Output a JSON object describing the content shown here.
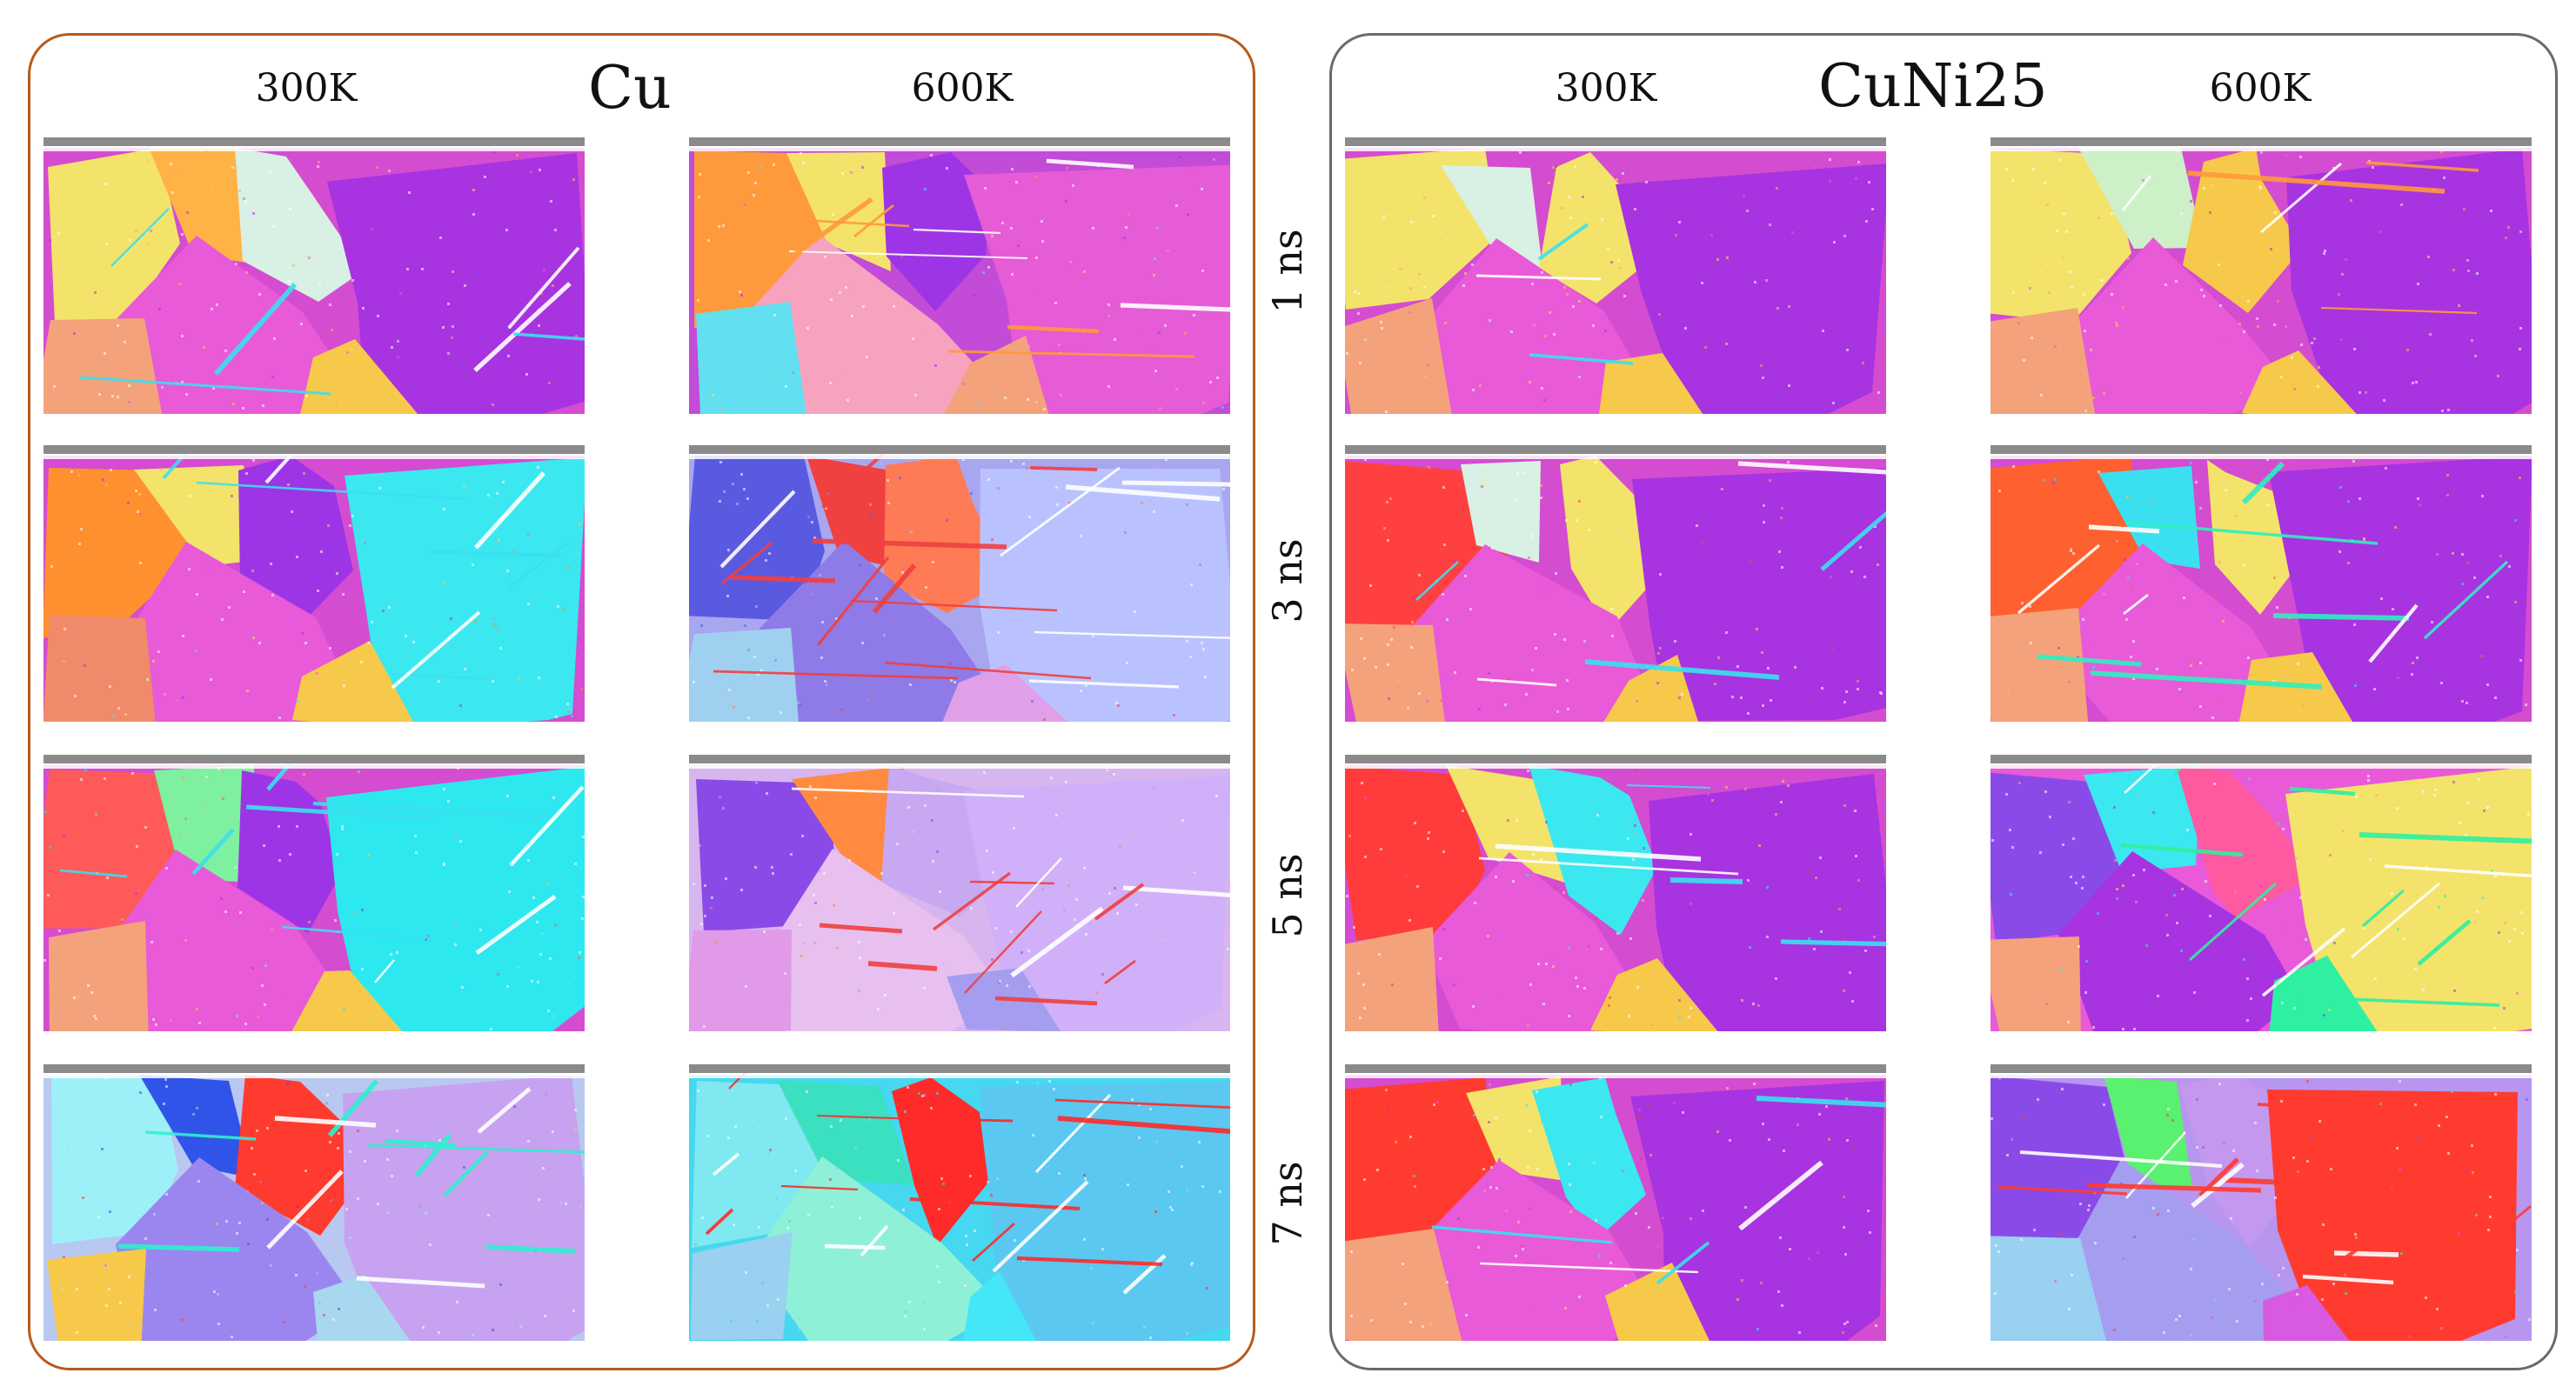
{
  "figure": {
    "row_labels": [
      "1 ns",
      "3 ns",
      "5 ns",
      "7 ns"
    ],
    "panels": [
      {
        "id": "cu",
        "title": "Cu",
        "frame_color": "#b85a1a",
        "columns": [
          "300K",
          "600K"
        ],
        "cells": [
          {
            "time": "1 ns",
            "temp": "300K",
            "base": "#d44cd0",
            "grains": [
              "#f4e36a",
              "#ffb347",
              "#d9f0e4",
              "#a833e0",
              "#e85ad8",
              "#f7c94a",
              "#f4a27c"
            ],
            "streaks": "#3be0f0",
            "twin_density": 6
          },
          {
            "time": "1 ns",
            "temp": "600K",
            "base": "#c24bd8",
            "grains": [
              "#ff9a3c",
              "#f4e36a",
              "#9d35e6",
              "#e65bd6",
              "#f7a3c0",
              "#f4a27c",
              "#62e0f0"
            ],
            "streaks": "#ff9a3c",
            "twin_density": 10
          },
          {
            "time": "3 ns",
            "temp": "300K",
            "base": "#d44cd0",
            "grains": [
              "#ff9030",
              "#f4e36a",
              "#9d35e6",
              "#3be8f0",
              "#e85ad8",
              "#f7c94a",
              "#f08a6a"
            ],
            "streaks": "#3be0f0",
            "twin_density": 8
          },
          {
            "time": "3 ns",
            "temp": "600K",
            "base": "#a9a6f0",
            "grains": [
              "#5a5ae0",
              "#f04040",
              "#ff7b55",
              "#b9c2ff",
              "#8f7be8",
              "#e0a0e8",
              "#9fd0f0"
            ],
            "streaks": "#f04040",
            "twin_density": 16
          },
          {
            "time": "5 ns",
            "temp": "300K",
            "base": "#d44cd0",
            "grains": [
              "#ff5a5a",
              "#7ef0a0",
              "#9d35e6",
              "#2ee8f0",
              "#e85ad8",
              "#f7c94a",
              "#f4a27c"
            ],
            "streaks": "#3be0f0",
            "twin_density": 9
          },
          {
            "time": "5 ns",
            "temp": "600K",
            "base": "#d7b6ef",
            "grains": [
              "#8a4ae8",
              "#ff8a40",
              "#c8a8f0",
              "#d0b0f8",
              "#e7c0f0",
              "#a59ef0",
              "#e09ae8"
            ],
            "streaks": "#f04040",
            "twin_density": 12
          },
          {
            "time": "7 ns",
            "temp": "300K",
            "base": "#b8c8f0",
            "grains": [
              "#9ef0f8",
              "#3054e8",
              "#ff3b30",
              "#c7a2f0",
              "#9b86f0",
              "#a8d8f0",
              "#f7c94a"
            ],
            "streaks": "#2ef0d0",
            "twin_density": 12
          },
          {
            "time": "7 ns",
            "temp": "600K",
            "base": "#45d8f0",
            "grains": [
              "#7fe8f0",
              "#3be0c0",
              "#ff2a2a",
              "#5ac8f0",
              "#8ff0d8",
              "#44e6f7",
              "#9ad0f0"
            ],
            "streaks": "#ff2a2a",
            "twin_density": 16
          }
        ]
      },
      {
        "id": "cuni25",
        "title": "CuNi25",
        "frame_color": "#6a6a6a",
        "columns": [
          "300K",
          "600K"
        ],
        "cells": [
          {
            "time": "1 ns",
            "temp": "300K",
            "base": "#d44cd0",
            "grains": [
              "#f4e36a",
              "#d9f0e4",
              "#f4e36a",
              "#a833e0",
              "#e85ad8",
              "#f7c94a",
              "#f4a27c"
            ],
            "streaks": "#3be0f0",
            "twin_density": 3
          },
          {
            "time": "1 ns",
            "temp": "600K",
            "base": "#d44cd0",
            "grains": [
              "#f4e36a",
              "#cdf0c8",
              "#f7c94a",
              "#a833e0",
              "#e85ad8",
              "#f7c94a",
              "#f4a27c"
            ],
            "streaks": "#ff9a3c",
            "twin_density": 5
          },
          {
            "time": "3 ns",
            "temp": "300K",
            "base": "#d44cd0",
            "grains": [
              "#ff4040",
              "#d9f0e4",
              "#f4e36a",
              "#a833e0",
              "#e85ad8",
              "#f7c94a",
              "#f4a27c"
            ],
            "streaks": "#3be0f0",
            "twin_density": 5
          },
          {
            "time": "3 ns",
            "temp": "600K",
            "base": "#d44cd0",
            "grains": [
              "#ff6030",
              "#3be0f0",
              "#f4e36a",
              "#a833e0",
              "#e85ad8",
              "#f7c94a",
              "#f4a27c"
            ],
            "streaks": "#2ef0c0",
            "twin_density": 10
          },
          {
            "time": "5 ns",
            "temp": "300K",
            "base": "#d44cd0",
            "grains": [
              "#ff3b3b",
              "#f4e36a",
              "#3be8f0",
              "#a833e0",
              "#e85ad8",
              "#f7c94a",
              "#f4a27c"
            ],
            "streaks": "#3be0f0",
            "twin_density": 5
          },
          {
            "time": "5 ns",
            "temp": "600K",
            "base": "#e85ad8",
            "grains": [
              "#8a4ae8",
              "#3be8f0",
              "#ff5aa0",
              "#f4e36a",
              "#a833e0",
              "#2ef0a0",
              "#f4a27c"
            ],
            "streaks": "#2ef0a0",
            "twin_density": 12
          },
          {
            "time": "7 ns",
            "temp": "300K",
            "base": "#d44cd0",
            "grains": [
              "#ff3b30",
              "#f4e36a",
              "#3be8f0",
              "#a833e0",
              "#e85ad8",
              "#f7c94a",
              "#f4a27c"
            ],
            "streaks": "#3be0f0",
            "twin_density": 5
          },
          {
            "time": "7 ns",
            "temp": "600K",
            "base": "#b796f0",
            "grains": [
              "#8a4ae8",
              "#5af070",
              "#c598f0",
              "#ff3b30",
              "#a59ef0",
              "#d85ae0",
              "#9ad0f0"
            ],
            "streaks": "#ff3b30",
            "twin_density": 14
          }
        ]
      }
    ]
  }
}
